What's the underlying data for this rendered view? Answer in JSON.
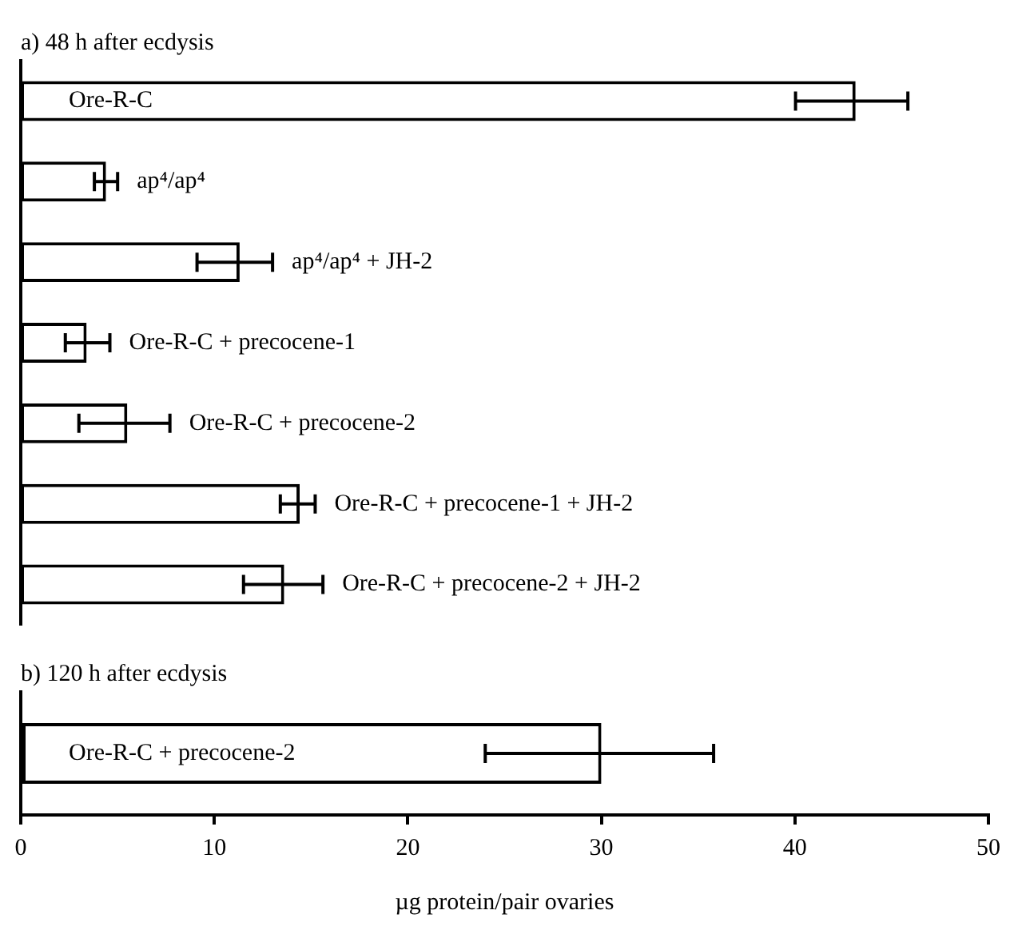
{
  "chart_data": [
    {
      "type": "bar",
      "orientation": "horizontal",
      "title": "a) 48 h after ecdysis",
      "categories": [
        "Ore-R-C",
        "ap⁴/ap⁴",
        "ap⁴/ap⁴ + JH-2",
        "Ore-R-C + precocene-1",
        "Ore-R-C + precocene-2",
        "Ore-R-C + precocene-1 + JH-2",
        "Ore-R-C + precocene-2 + JH-2"
      ],
      "values": [
        43.1,
        4.4,
        11.3,
        3.4,
        5.5,
        14.4,
        13.6
      ],
      "errors": [
        [
          40.0,
          45.8
        ],
        [
          3.8,
          5.0
        ],
        [
          9.1,
          13.0
        ],
        [
          2.3,
          4.6
        ],
        [
          3.0,
          7.7
        ],
        [
          13.4,
          15.2
        ],
        [
          11.5,
          15.6
        ]
      ],
      "color": "#ffffff",
      "xlim": [
        0,
        50
      ],
      "tick_labels": "y"
    },
    {
      "type": "bar",
      "orientation": "horizontal",
      "title": "b) 120 h after ecdysis",
      "categories": [
        "Ore-R-C + precocene-2"
      ],
      "values": [
        30.0
      ],
      "errors": [
        [
          24.0,
          35.8
        ]
      ],
      "color": "#ffffff",
      "xlim": [
        0,
        50
      ],
      "xticks": [
        0,
        10,
        20,
        30,
        40,
        50
      ],
      "xlabel": "µg protein/pair ovaries"
    }
  ]
}
